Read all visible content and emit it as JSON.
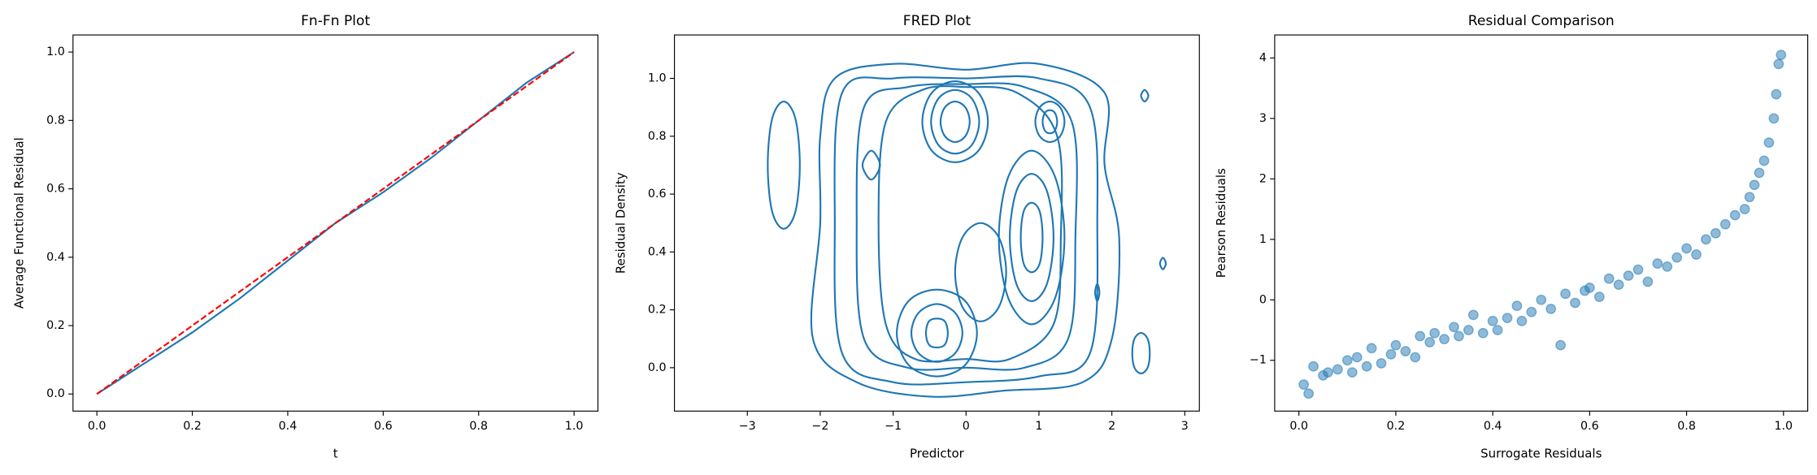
{
  "chart_data": [
    {
      "type": "line",
      "title": "Fn-Fn Plot",
      "xlabel": "t",
      "ylabel": "Average Functional Residual",
      "x": [
        0,
        0.1,
        0.2,
        0.3,
        0.4,
        0.5,
        0.6,
        0.7,
        0.8,
        0.9,
        1.0
      ],
      "series": [
        {
          "color": "#1f77b4",
          "style": "solid",
          "values": [
            0,
            0.09,
            0.18,
            0.28,
            0.39,
            0.5,
            0.59,
            0.69,
            0.8,
            0.91,
            1.0
          ]
        },
        {
          "color": "#ff0000",
          "style": "dashed",
          "values": [
            0,
            0.1,
            0.2,
            0.3,
            0.4,
            0.5,
            0.6,
            0.7,
            0.8,
            0.9,
            1.0
          ]
        }
      ],
      "xlim": [
        -0.05,
        1.05
      ],
      "ylim": [
        -0.05,
        1.05
      ],
      "xticks": [
        {
          "value": 0,
          "label": "0.0"
        },
        {
          "value": 0.2,
          "label": "0.2"
        },
        {
          "value": 0.4,
          "label": "0.4"
        },
        {
          "value": 0.6,
          "label": "0.6"
        },
        {
          "value": 0.8,
          "label": "0.8"
        },
        {
          "value": 1,
          "label": "1.0"
        }
      ],
      "yticks": [
        {
          "value": 0,
          "label": "0.0"
        },
        {
          "value": 0.2,
          "label": "0.2"
        },
        {
          "value": 0.4,
          "label": "0.4"
        },
        {
          "value": 0.6,
          "label": "0.6"
        },
        {
          "value": 0.8,
          "label": "0.8"
        },
        {
          "value": 1,
          "label": "1.0"
        }
      ]
    },
    {
      "type": "contour",
      "title": "FRED Plot",
      "xlabel": "Predictor",
      "ylabel": "Residual Density",
      "color": "#1f77b4",
      "contours": [
        {
          "x": [
            -1.8,
            -1.0,
            0,
            1.0,
            1.9,
            1.9,
            2.1,
            2.0,
            1.6,
            0.5,
            -0.5,
            -1.5,
            -2.1,
            -2.0,
            -2.0
          ],
          "y": [
            1.0,
            1.05,
            1.03,
            1.05,
            0.95,
            0.7,
            0.45,
            0.1,
            -0.05,
            -0.08,
            -0.1,
            -0.05,
            0.1,
            0.5,
            0.8
          ]
        },
        {
          "x": [
            -1.7,
            -1.0,
            0,
            1.0,
            1.7,
            1.8,
            1.7,
            1.0,
            0,
            -1.0,
            -1.7,
            -1.8
          ],
          "y": [
            0.95,
            1.0,
            1.0,
            1.0,
            0.9,
            0.5,
            0.05,
            -0.03,
            -0.05,
            -0.05,
            0.05,
            0.5
          ]
        },
        {
          "x": [
            -1.4,
            -0.8,
            0,
            0.8,
            1.45,
            1.5,
            1.4,
            0.8,
            0,
            -0.8,
            -1.4,
            -1.5
          ],
          "y": [
            0.9,
            0.97,
            0.98,
            0.97,
            0.85,
            0.45,
            0.1,
            0.0,
            0.0,
            0.0,
            0.1,
            0.5
          ]
        },
        {
          "x": [
            -1.1,
            -0.6,
            0,
            0.7,
            1.25,
            1.3,
            1.2,
            0.6,
            0,
            -0.7,
            -1.1,
            -1.2
          ],
          "y": [
            0.85,
            0.96,
            0.97,
            0.95,
            0.8,
            0.45,
            0.15,
            0.03,
            0.03,
            0.03,
            0.15,
            0.5
          ]
        },
        {
          "x": [
            -1.18,
            -1.3,
            -1.42,
            -1.3
          ],
          "y": [
            0.7,
            0.75,
            0.7,
            0.65
          ]
        },
        {
          "x": [
            0.3,
            0.17,
            -0.15,
            -0.47,
            -0.6,
            -0.47,
            -0.15,
            0.17
          ],
          "y": [
            0.85,
            0.95,
            0.99,
            0.95,
            0.85,
            0.75,
            0.71,
            0.75
          ]
        },
        {
          "x": [
            0.18,
            0.08,
            -0.15,
            -0.38,
            -0.48,
            -0.38,
            -0.15,
            0.08
          ],
          "y": [
            0.85,
            0.93,
            0.96,
            0.93,
            0.85,
            0.77,
            0.74,
            0.77
          ]
        },
        {
          "x": [
            0.05,
            -0.01,
            -0.15,
            -0.29,
            -0.35,
            -0.29,
            -0.15,
            -0.01
          ],
          "y": [
            0.85,
            0.9,
            0.92,
            0.9,
            0.85,
            0.8,
            0.78,
            0.8
          ]
        },
        {
          "x": [
            1.35,
            1.29,
            1.15,
            1.01,
            0.95,
            1.01,
            1.15,
            1.29
          ],
          "y": [
            0.85,
            0.9,
            0.92,
            0.9,
            0.85,
            0.8,
            0.78,
            0.8
          ]
        },
        {
          "x": [
            1.25,
            1.22,
            1.15,
            1.08,
            1.05,
            1.08,
            1.15,
            1.22
          ],
          "y": [
            0.85,
            0.88,
            0.89,
            0.88,
            0.85,
            0.82,
            0.81,
            0.82
          ]
        },
        {
          "x": [
            1.35,
            1.22,
            0.9,
            0.58,
            0.45,
            0.58,
            0.9,
            1.22
          ],
          "y": [
            0.45,
            0.66,
            0.75,
            0.66,
            0.45,
            0.24,
            0.15,
            0.24
          ]
        },
        {
          "x": [
            1.2,
            1.11,
            0.9,
            0.69,
            0.6,
            0.69,
            0.9,
            1.11
          ],
          "y": [
            0.45,
            0.61,
            0.67,
            0.61,
            0.45,
            0.29,
            0.23,
            0.29
          ]
        },
        {
          "x": [
            1.05,
            1.01,
            0.9,
            0.79,
            0.75,
            0.79,
            0.9,
            1.01
          ],
          "y": [
            0.45,
            0.54,
            0.57,
            0.54,
            0.45,
            0.36,
            0.33,
            0.36
          ]
        },
        {
          "x": [
            0.15,
            -0.01,
            -0.4,
            -0.79,
            -0.95,
            -0.79,
            -0.4,
            -0.01
          ],
          "y": [
            0.12,
            0.23,
            0.27,
            0.23,
            0.12,
            0.01,
            -0.03,
            0.01
          ]
        },
        {
          "x": [
            -0.05,
            -0.15,
            -0.4,
            -0.65,
            -0.75,
            -0.65,
            -0.4,
            -0.15
          ],
          "y": [
            0.12,
            0.19,
            0.22,
            0.19,
            0.12,
            0.05,
            0.02,
            0.05
          ]
        },
        {
          "x": [
            -0.25,
            -0.29,
            -0.4,
            -0.51,
            -0.55,
            -0.51,
            -0.4,
            -0.29
          ],
          "y": [
            0.12,
            0.16,
            0.17,
            0.16,
            0.12,
            0.08,
            0.07,
            0.08
          ]
        },
        {
          "x": [
            0.55,
            0.45,
            0.2,
            -0.05,
            -0.15,
            -0.05,
            0.2,
            0.45
          ],
          "y": [
            0.33,
            0.45,
            0.5,
            0.45,
            0.33,
            0.21,
            0.16,
            0.21
          ]
        },
        {
          "x": [
            -2.28,
            -2.34,
            -2.5,
            -2.66,
            -2.72,
            -2.66,
            -2.5,
            -2.34
          ],
          "y": [
            0.7,
            0.86,
            0.92,
            0.86,
            0.7,
            0.54,
            0.48,
            0.54
          ]
        },
        {
          "x": [
            2.52,
            2.49,
            2.4,
            2.31,
            2.28,
            2.31,
            2.4,
            2.49
          ],
          "y": [
            0.05,
            0.1,
            0.12,
            0.1,
            0.05,
            0,
            -0.02,
            0
          ]
        },
        {
          "x": [
            2.5,
            2.45,
            2.4,
            2.45
          ],
          "y": [
            0.94,
            0.96,
            0.94,
            0.92
          ]
        },
        {
          "x": [
            2.74,
            2.7,
            2.66,
            2.7
          ],
          "y": [
            0.36,
            0.38,
            0.36,
            0.34
          ]
        },
        {
          "x": [
            1.83,
            1.8,
            1.77,
            1.8
          ],
          "y": [
            0.26,
            0.29,
            0.26,
            0.23
          ]
        }
      ],
      "xlim": [
        -4.0,
        3.2
      ],
      "ylim": [
        -0.15,
        1.15
      ],
      "xticks": [
        {
          "value": -3,
          "label": "−3"
        },
        {
          "value": -2,
          "label": "−2"
        },
        {
          "value": -1,
          "label": "−1"
        },
        0,
        1,
        2,
        3
      ],
      "yticks": [
        {
          "value": 0,
          "label": "0.0"
        },
        {
          "value": 0.2,
          "label": "0.2"
        },
        {
          "value": 0.4,
          "label": "0.4"
        },
        {
          "value": 0.6,
          "label": "0.6"
        },
        {
          "value": 0.8,
          "label": "0.8"
        },
        {
          "value": 1,
          "label": "1.0"
        }
      ]
    },
    {
      "type": "scatter",
      "title": "Residual Comparison",
      "xlabel": "Surrogate Residuals",
      "ylabel": "Pearson Residuals",
      "color": "#1f77b4",
      "opacity": 0.5,
      "x": [
        0.01,
        0.02,
        0.03,
        0.05,
        0.06,
        0.08,
        0.1,
        0.11,
        0.12,
        0.14,
        0.15,
        0.17,
        0.19,
        0.2,
        0.22,
        0.24,
        0.25,
        0.27,
        0.28,
        0.3,
        0.32,
        0.33,
        0.35,
        0.36,
        0.38,
        0.4,
        0.41,
        0.43,
        0.45,
        0.46,
        0.48,
        0.5,
        0.52,
        0.54,
        0.55,
        0.57,
        0.59,
        0.6,
        0.62,
        0.64,
        0.66,
        0.68,
        0.7,
        0.72,
        0.74,
        0.76,
        0.78,
        0.8,
        0.82,
        0.84,
        0.86,
        0.88,
        0.9,
        0.92,
        0.93,
        0.94,
        0.95,
        0.96,
        0.97,
        0.98,
        0.985,
        0.99,
        0.995
      ],
      "values": [
        -1.4,
        -1.55,
        -1.1,
        -1.25,
        -1.2,
        -1.15,
        -1.0,
        -1.2,
        -0.95,
        -1.1,
        -0.8,
        -1.05,
        -0.9,
        -0.75,
        -0.85,
        -0.95,
        -0.6,
        -0.7,
        -0.55,
        -0.65,
        -0.45,
        -0.6,
        -0.5,
        -0.25,
        -0.55,
        -0.35,
        -0.5,
        -0.3,
        -0.1,
        -0.35,
        -0.2,
        0.0,
        -0.15,
        -0.75,
        0.1,
        -0.05,
        0.15,
        0.2,
        0.05,
        0.35,
        0.25,
        0.4,
        0.5,
        0.3,
        0.6,
        0.55,
        0.7,
        0.85,
        0.75,
        1.0,
        1.1,
        1.25,
        1.4,
        1.5,
        1.7,
        1.9,
        2.1,
        2.3,
        2.6,
        3.0,
        3.4,
        3.9,
        4.05
      ],
      "xlim": [
        -0.05,
        1.05
      ],
      "ylim": [
        -1.84,
        4.38
      ],
      "xticks": [
        {
          "value": 0,
          "label": "0.0"
        },
        {
          "value": 0.2,
          "label": "0.2"
        },
        {
          "value": 0.4,
          "label": "0.4"
        },
        {
          "value": 0.6,
          "label": "0.6"
        },
        {
          "value": 0.8,
          "label": "0.8"
        },
        {
          "value": 1,
          "label": "1.0"
        }
      ],
      "yticks": [
        {
          "value": -1,
          "label": "−1"
        },
        0,
        1,
        2,
        3,
        4
      ]
    }
  ]
}
